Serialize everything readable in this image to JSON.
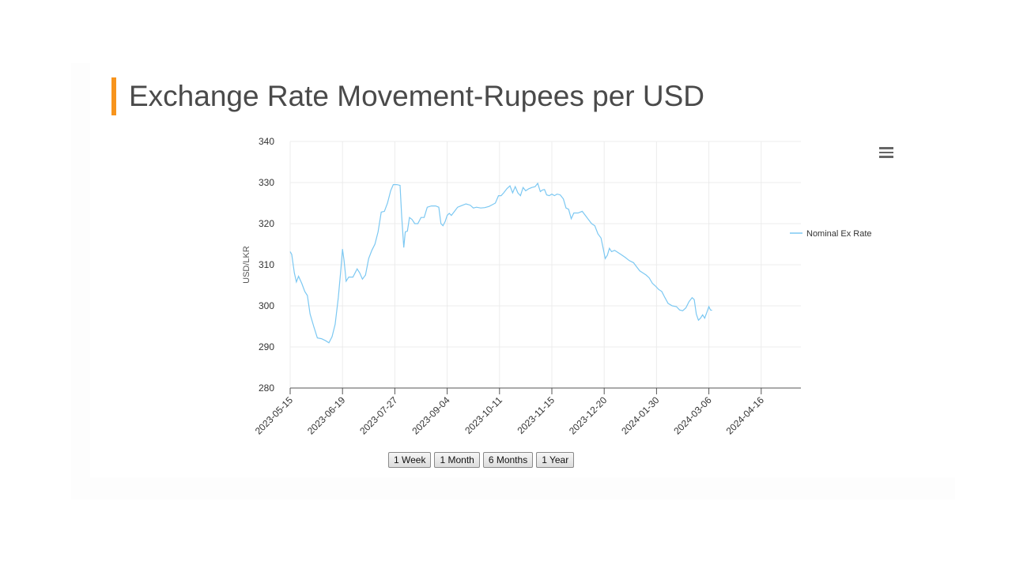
{
  "page": {
    "title": "Exchange Rate Movement-Rupees per USD",
    "accent_color": "#f7941d",
    "menu_icon": "hamburger-menu-icon"
  },
  "range_buttons": [
    "1 Week",
    "1 Month",
    "6 Months",
    "1 Year"
  ],
  "chart_data": {
    "type": "line",
    "title": "",
    "xlabel": "",
    "ylabel": "USD/LKR",
    "ylim": [
      280,
      340
    ],
    "yticks": [
      280,
      290,
      300,
      310,
      320,
      330,
      340
    ],
    "xticks": [
      "2023-05-15",
      "2023-06-19",
      "2023-07-27",
      "2023-09-04",
      "2023-10-11",
      "2023-11-15",
      "2023-12-20",
      "2024-01-30",
      "2024-03-06",
      "2024-04-16"
    ],
    "grid": true,
    "legend_position": "right",
    "series": [
      {
        "name": "Nominal Ex Rate",
        "color": "#7cc8f2",
        "points": [
          [
            0,
            313.2
          ],
          [
            0.03,
            312.5
          ],
          [
            0.08,
            308
          ],
          [
            0.12,
            305.8
          ],
          [
            0.16,
            307.2
          ],
          [
            0.22,
            305.5
          ],
          [
            0.28,
            303.5
          ],
          [
            0.33,
            302.5
          ],
          [
            0.38,
            298
          ],
          [
            0.45,
            295
          ],
          [
            0.52,
            292.2
          ],
          [
            0.6,
            292
          ],
          [
            0.68,
            291.5
          ],
          [
            0.74,
            291
          ],
          [
            0.8,
            292.5
          ],
          [
            0.86,
            295.5
          ],
          [
            0.92,
            302
          ],
          [
            0.97,
            309
          ],
          [
            1.0,
            313.8
          ],
          [
            1.03,
            311
          ],
          [
            1.07,
            306
          ],
          [
            1.12,
            307
          ],
          [
            1.2,
            307
          ],
          [
            1.28,
            309
          ],
          [
            1.33,
            308
          ],
          [
            1.38,
            306.5
          ],
          [
            1.44,
            307.5
          ],
          [
            1.5,
            311.5
          ],
          [
            1.56,
            313.5
          ],
          [
            1.62,
            315
          ],
          [
            1.68,
            318
          ],
          [
            1.74,
            322.8
          ],
          [
            1.8,
            323
          ],
          [
            1.86,
            325
          ],
          [
            1.92,
            328
          ],
          [
            1.97,
            329.5
          ],
          [
            2.04,
            329.5
          ],
          [
            2.1,
            329.3
          ],
          [
            2.13,
            322
          ],
          [
            2.17,
            314.2
          ],
          [
            2.2,
            318
          ],
          [
            2.24,
            318.2
          ],
          [
            2.28,
            321.5
          ],
          [
            2.33,
            321
          ],
          [
            2.38,
            320
          ],
          [
            2.44,
            320
          ],
          [
            2.5,
            321.5
          ],
          [
            2.56,
            321.5
          ],
          [
            2.62,
            324
          ],
          [
            2.7,
            324.3
          ],
          [
            2.78,
            324.3
          ],
          [
            2.84,
            324
          ],
          [
            2.88,
            320
          ],
          [
            2.92,
            319.5
          ],
          [
            2.96,
            320.5
          ],
          [
            3.0,
            322
          ],
          [
            3.04,
            322.5
          ],
          [
            3.08,
            322
          ],
          [
            3.14,
            323
          ],
          [
            3.2,
            324
          ],
          [
            3.28,
            324.4
          ],
          [
            3.36,
            324.8
          ],
          [
            3.44,
            324.5
          ],
          [
            3.5,
            323.8
          ],
          [
            3.56,
            324
          ],
          [
            3.64,
            323.8
          ],
          [
            3.72,
            323.9
          ],
          [
            3.8,
            324.2
          ],
          [
            3.86,
            324.6
          ],
          [
            3.92,
            325
          ],
          [
            3.98,
            326.8
          ],
          [
            4.03,
            326.8
          ],
          [
            4.08,
            327.5
          ],
          [
            4.14,
            328.5
          ],
          [
            4.2,
            329.2
          ],
          [
            4.25,
            327.5
          ],
          [
            4.3,
            329
          ],
          [
            4.35,
            327.5
          ],
          [
            4.4,
            326.8
          ],
          [
            4.45,
            328.8
          ],
          [
            4.5,
            328
          ],
          [
            4.56,
            328.5
          ],
          [
            4.62,
            328.8
          ],
          [
            4.68,
            329
          ],
          [
            4.73,
            329.8
          ],
          [
            4.78,
            327.8
          ],
          [
            4.82,
            328.2
          ],
          [
            4.86,
            328.3
          ],
          [
            4.9,
            327
          ],
          [
            4.95,
            326.8
          ],
          [
            5.0,
            327.2
          ],
          [
            5.05,
            326.8
          ],
          [
            5.1,
            327.2
          ],
          [
            5.16,
            327
          ],
          [
            5.22,
            326
          ],
          [
            5.27,
            323.8
          ],
          [
            5.32,
            323.5
          ],
          [
            5.37,
            321.2
          ],
          [
            5.42,
            322.6
          ],
          [
            5.5,
            322.6
          ],
          [
            5.58,
            323
          ],
          [
            5.64,
            322
          ],
          [
            5.7,
            321
          ],
          [
            5.76,
            320
          ],
          [
            5.82,
            319.5
          ],
          [
            5.88,
            317.5
          ],
          [
            5.94,
            316.5
          ],
          [
            5.98,
            314
          ],
          [
            6.02,
            311.5
          ],
          [
            6.06,
            312.3
          ],
          [
            6.1,
            314
          ],
          [
            6.14,
            313.2
          ],
          [
            6.2,
            313.5
          ],
          [
            6.26,
            313
          ],
          [
            6.32,
            312.5
          ],
          [
            6.4,
            311.8
          ],
          [
            6.48,
            311
          ],
          [
            6.56,
            310.5
          ],
          [
            6.62,
            309.5
          ],
          [
            6.68,
            308.5
          ],
          [
            6.74,
            308
          ],
          [
            6.8,
            307.5
          ],
          [
            6.86,
            306.8
          ],
          [
            6.92,
            305.5
          ],
          [
            6.98,
            304.8
          ],
          [
            7.04,
            304
          ],
          [
            7.1,
            303.5
          ],
          [
            7.16,
            302
          ],
          [
            7.22,
            300.6
          ],
          [
            7.3,
            300
          ],
          [
            7.38,
            299.8
          ],
          [
            7.44,
            299
          ],
          [
            7.5,
            298.8
          ],
          [
            7.56,
            299.5
          ],
          [
            7.62,
            301
          ],
          [
            7.68,
            302
          ],
          [
            7.72,
            301.5
          ],
          [
            7.76,
            298
          ],
          [
            7.8,
            296.5
          ],
          [
            7.84,
            297
          ],
          [
            7.88,
            297.8
          ],
          [
            7.92,
            297
          ],
          [
            7.96,
            298.4
          ],
          [
            8.0,
            299.8
          ],
          [
            8.03,
            299
          ],
          [
            8.06,
            298.9
          ]
        ]
      }
    ]
  }
}
